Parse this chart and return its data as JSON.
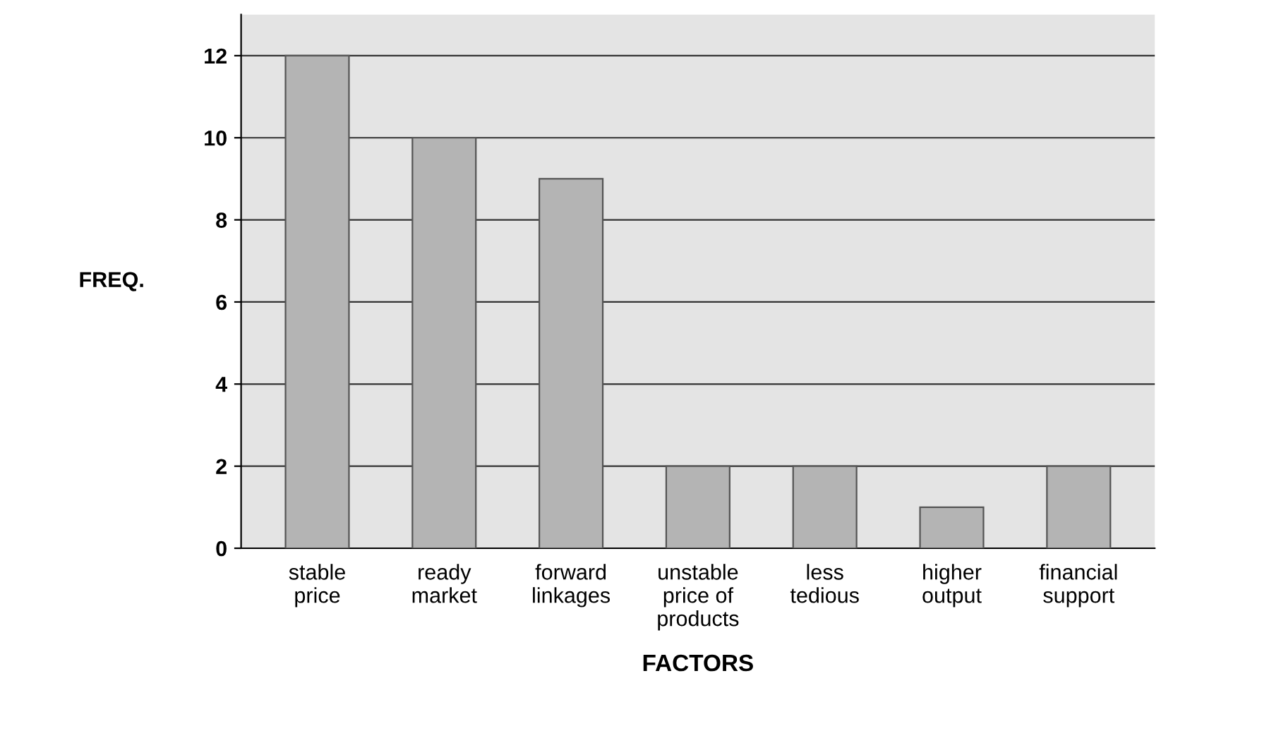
{
  "chart_data": {
    "type": "bar",
    "categories": [
      "stable\nprice",
      "ready\nmarket",
      "forward\nlinkages",
      "unstable\nprice of\nproducts",
      "less\ntedious",
      "higher\noutput",
      "financial\nsupport"
    ],
    "values": [
      12,
      10,
      9,
      2,
      2,
      1,
      2
    ],
    "color": "#b4b4b4",
    "xlabel": "FACTORS",
    "ylabel": "FREQ.",
    "ylim": [
      0,
      13
    ],
    "yticks": [
      0,
      2,
      4,
      6,
      8,
      10,
      12
    ],
    "grid": "y"
  }
}
